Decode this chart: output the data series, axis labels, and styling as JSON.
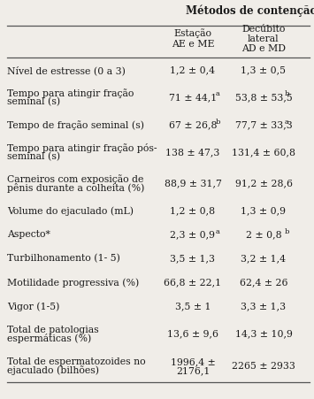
{
  "title": "Métodos de contenção",
  "col1_header": [
    "Estação",
    "AE e ME"
  ],
  "col2_header": [
    "Decúbito",
    "lateral",
    "AD e MD"
  ],
  "rows": [
    {
      "label": [
        "Nível de estresse (0 a 3)"
      ],
      "col1": "1,2 ± 0,4",
      "col1_super": "",
      "col2": "1,3 ± 0,5",
      "col2_super": ""
    },
    {
      "label": [
        "Tempo para atingir fração",
        "seminal (s)"
      ],
      "col1": "71 ± 44,1",
      "col1_super": "a",
      "col2": "53,8 ± 53,5",
      "col2_super": "b"
    },
    {
      "label": [
        "Tempo de fração seminal (s)"
      ],
      "col1": "67 ± 26,8",
      "col1_super": "b",
      "col2": "77,7 ± 33,3",
      "col2_super": "a"
    },
    {
      "label": [
        "Tempo para atingir fração pós-",
        "seminal (s)"
      ],
      "col1": "138 ± 47,3",
      "col1_super": "",
      "col2": "131,4 ± 60,8",
      "col2_super": ""
    },
    {
      "label": [
        "Carneiros com exposição de",
        "pênis durante a colheita (%)"
      ],
      "col1": "88,9 ± 31,7",
      "col1_super": "",
      "col2": "91,2 ± 28,6",
      "col2_super": ""
    },
    {
      "label": [
        "Volume do ejaculado (mL)"
      ],
      "col1": "1,2 ± 0,8",
      "col1_super": "",
      "col2": "1,3 ± 0,9",
      "col2_super": ""
    },
    {
      "label": [
        "Aspecto*"
      ],
      "col1": "2,3 ± 0,9",
      "col1_super": "a",
      "col2": "2 ± 0,8",
      "col2_super": "b"
    },
    {
      "label": [
        "Turbilhonamento (1- 5)"
      ],
      "col1": "3,5 ± 1,3",
      "col1_super": "",
      "col2": "3,2 ± 1,4",
      "col2_super": ""
    },
    {
      "label": [
        "Motilidade progressiva (%)"
      ],
      "col1": "66,8 ± 22,1",
      "col1_super": "",
      "col2": "62,4 ± 26",
      "col2_super": ""
    },
    {
      "label": [
        "Vigor (1-5)"
      ],
      "col1": "3,5 ± 1",
      "col1_super": "",
      "col2": "3,3 ± 1,3",
      "col2_super": ""
    },
    {
      "label": [
        "Total de patologias",
        "espermáticas (%)"
      ],
      "col1": "13,6 ± 9,6",
      "col1_super": "",
      "col2": "14,3 ± 10,9",
      "col2_super": ""
    },
    {
      "label": [
        "Total de espermatozoides no",
        "ejaculado (bilhões)"
      ],
      "col1": "1996,4 ±\n2176,1",
      "col1_super": "",
      "col2": "2265 ± 2933",
      "col2_super": ""
    }
  ],
  "bg_color": "#f0ede8",
  "text_color": "#1a1a1a",
  "font_size": 7.8,
  "title_font_size": 8.5,
  "super_font_size": 6.0,
  "line_color": "#555555",
  "line_width": 0.9
}
